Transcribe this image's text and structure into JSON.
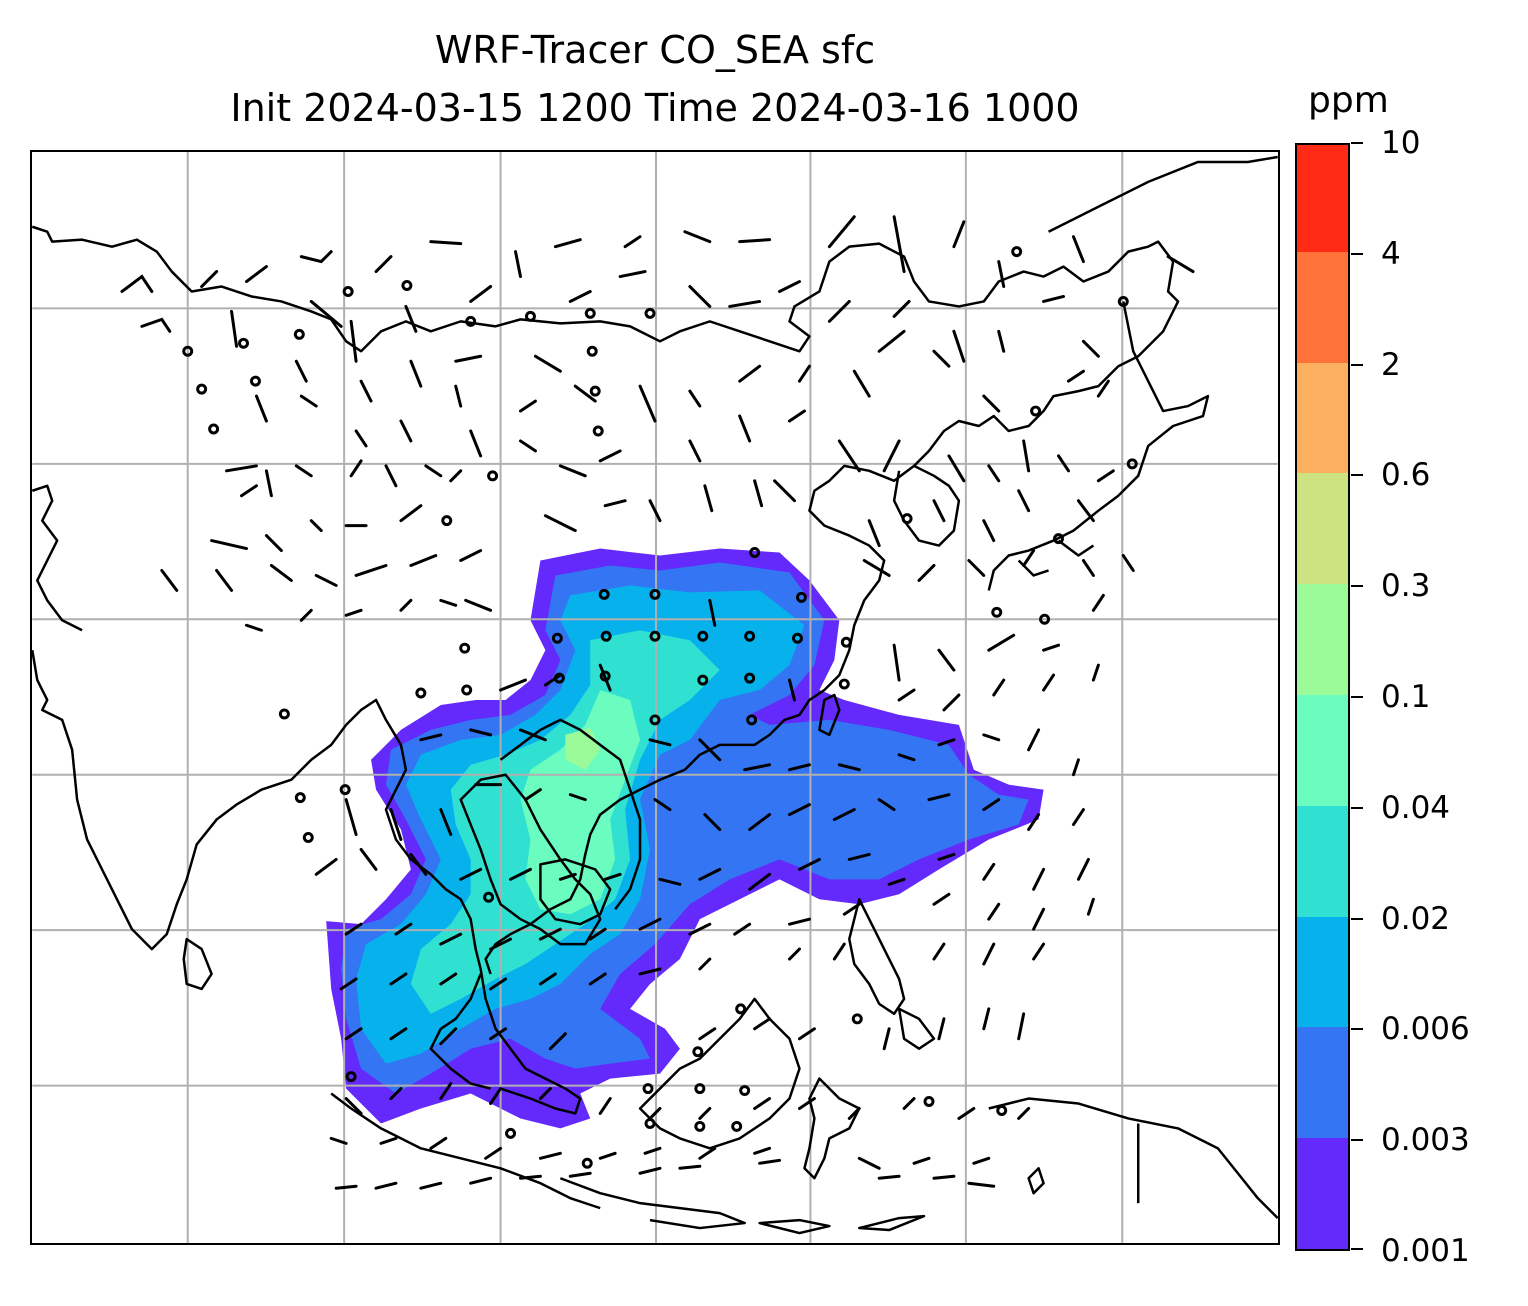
{
  "title": {
    "line1": "WRF-Tracer CO_SEA sfc",
    "line2": "Init 2024-03-15 1200 Time 2024-03-16 1000"
  },
  "colorbar": {
    "unit": "ppm",
    "levels": [
      "0.001",
      "0.003",
      "0.006",
      "0.02",
      "0.04",
      "0.1",
      "0.3",
      "0.6",
      "2",
      "4",
      "10"
    ],
    "colors": [
      "#6429fb",
      "#3375f3",
      "#07b1ec",
      "#30e1d2",
      "#6bfcbf",
      "#9bfb98",
      "#cde281",
      "#fdaf60",
      "#ff733a",
      "#ff2b17"
    ]
  },
  "chart_data": {
    "type": "heatmap",
    "variable": "CO_SEA",
    "unit": "ppm",
    "levels": [
      0.001,
      0.003,
      0.006,
      0.02,
      0.04,
      0.1,
      0.3,
      0.6,
      2,
      4,
      10
    ],
    "gridlines": true,
    "overlays": [
      "wind barbs",
      "calm-wind circles",
      "coastlines"
    ]
  }
}
